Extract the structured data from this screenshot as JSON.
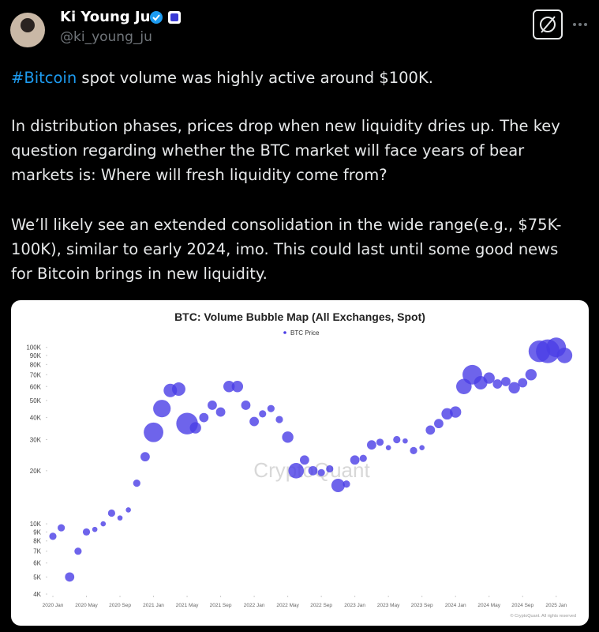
{
  "post": {
    "author": {
      "name": "Ki Young Ju",
      "handle": "@ki_young_ju"
    },
    "hashtag": "#Bitcoin",
    "first_line_rest": " spot volume was highly active around $100K.",
    "paragraph_2": [
      "In distribution phases, prices drop when new liquidity dries up. The key",
      "question regarding whether the BTC market will face years of bear",
      "markets is: Where will fresh liquidity come from?"
    ],
    "paragraph_3": [
      "We’ll likely see an extended consolidation in the wide range(e.g., $75K-",
      "100K), similar to early 2024, imo. This could last until some good news",
      "for Bitcoin brings in new liquidity."
    ]
  },
  "chart_data": {
    "type": "bubble",
    "title": "BTC: Volume Bubble Map (All Exchanges, Spot)",
    "watermark": "CryptoQuant",
    "copyright": "© CryptoQuant. All rights reserved",
    "log_y": true,
    "legend": "top",
    "x": [
      "2020-01",
      "2020-02",
      "2020-03",
      "2020-04",
      "2020-05",
      "2020-06",
      "2020-07",
      "2020-08",
      "2020-09",
      "2020-10",
      "2020-11",
      "2020-12",
      "2021-01",
      "2021-02",
      "2021-03",
      "2021-04",
      "2021-05",
      "2021-06",
      "2021-07",
      "2021-08",
      "2021-09",
      "2021-10",
      "2021-11",
      "2021-12",
      "2022-01",
      "2022-02",
      "2022-03",
      "2022-04",
      "2022-05",
      "2022-06",
      "2022-07",
      "2022-08",
      "2022-09",
      "2022-10",
      "2022-11",
      "2022-12",
      "2023-01",
      "2023-02",
      "2023-03",
      "2023-04",
      "2023-05",
      "2023-06",
      "2023-07",
      "2023-08",
      "2023-09",
      "2023-10",
      "2023-11",
      "2023-12",
      "2024-01",
      "2024-02",
      "2024-03",
      "2024-04",
      "2024-05",
      "2024-06",
      "2024-07",
      "2024-08",
      "2024-09",
      "2024-10",
      "2024-11",
      "2024-12",
      "2025-01",
      "2025-02"
    ],
    "series": [
      {
        "name": "BTC Price",
        "color": "#4a3de6",
        "values": [
          8500,
          9500,
          5000,
          7000,
          9000,
          9300,
          10000,
          11500,
          10800,
          12000,
          17000,
          24000,
          33000,
          45000,
          57000,
          58000,
          37000,
          35000,
          40000,
          47000,
          43000,
          60000,
          60000,
          47000,
          38000,
          42000,
          45000,
          39000,
          31000,
          20000,
          23000,
          20000,
          19500,
          20500,
          16500,
          16800,
          23000,
          23500,
          28000,
          29000,
          27000,
          30000,
          29500,
          26000,
          27000,
          34000,
          37000,
          42000,
          43000,
          60000,
          70000,
          63000,
          67000,
          62000,
          64000,
          59000,
          63000,
          70000,
          95000,
          95000,
          100000,
          90000
        ],
        "sizes": [
          2,
          2,
          3,
          2,
          2,
          1,
          1,
          2,
          1,
          1,
          2,
          3,
          8,
          7,
          5,
          5,
          9,
          4,
          3,
          3,
          3,
          4,
          4,
          3,
          3,
          2,
          2,
          2,
          4,
          6,
          3,
          3,
          2,
          2,
          5,
          2,
          3,
          2,
          3,
          2,
          1,
          2,
          1,
          2,
          1,
          3,
          3,
          4,
          4,
          6,
          8,
          5,
          4,
          3,
          3,
          4,
          3,
          4,
          9,
          10,
          8,
          6
        ]
      }
    ],
    "xlim": [
      "2020-01",
      "2025-03"
    ],
    "xticks": [
      {
        "value": "2020-01",
        "label": "2020 Jan"
      },
      {
        "value": "2020-05",
        "label": "2020 May"
      },
      {
        "value": "2020-09",
        "label": "2020 Sep"
      },
      {
        "value": "2021-01",
        "label": "2021 Jan"
      },
      {
        "value": "2021-05",
        "label": "2021 May"
      },
      {
        "value": "2021-09",
        "label": "2021 Sep"
      },
      {
        "value": "2022-01",
        "label": "2022 Jan"
      },
      {
        "value": "2022-05",
        "label": "2022 May"
      },
      {
        "value": "2022-09",
        "label": "2022 Sep"
      },
      {
        "value": "2023-01",
        "label": "2023 Jan"
      },
      {
        "value": "2023-05",
        "label": "2023 May"
      },
      {
        "value": "2023-09",
        "label": "2023 Sep"
      },
      {
        "value": "2024-01",
        "label": "2024 Jan"
      },
      {
        "value": "2024-05",
        "label": "2024 May"
      },
      {
        "value": "2024-09",
        "label": "2024 Sep"
      },
      {
        "value": "2025-01",
        "label": "2025 Jan"
      }
    ],
    "ylim": [
      4000,
      120000
    ],
    "yticks": [
      {
        "value": 4000,
        "label": "4K"
      },
      {
        "value": 5000,
        "label": "5K"
      },
      {
        "value": 6000,
        "label": "6K"
      },
      {
        "value": 7000,
        "label": "7K"
      },
      {
        "value": 8000,
        "label": "8K"
      },
      {
        "value": 9000,
        "label": "9K"
      },
      {
        "value": 10000,
        "label": "10K"
      },
      {
        "value": 20000,
        "label": "20K"
      },
      {
        "value": 30000,
        "label": "30K"
      },
      {
        "value": 40000,
        "label": "40K"
      },
      {
        "value": 50000,
        "label": "50K"
      },
      {
        "value": 60000,
        "label": "60K"
      },
      {
        "value": 70000,
        "label": "70K"
      },
      {
        "value": 80000,
        "label": "80K"
      },
      {
        "value": 90000,
        "label": "90K"
      },
      {
        "value": 100000,
        "label": "100K"
      }
    ]
  }
}
